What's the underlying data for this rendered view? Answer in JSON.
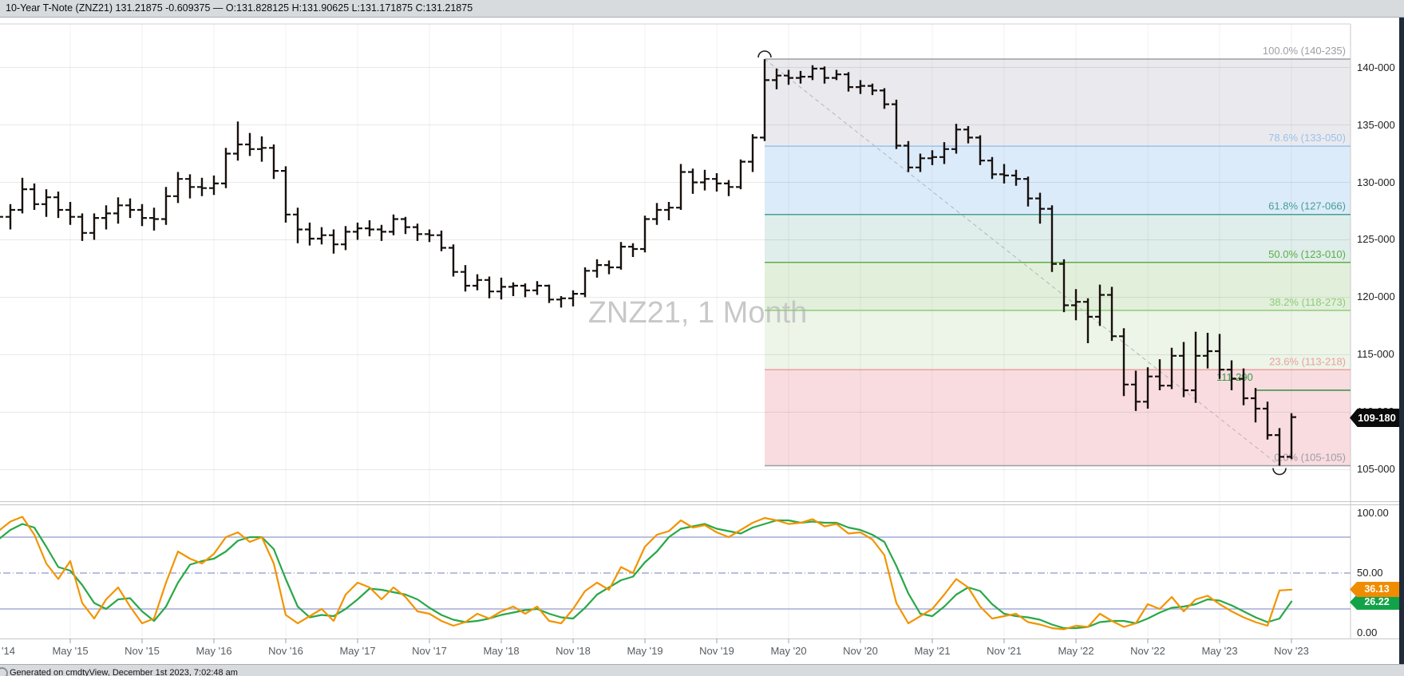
{
  "title_bar": {
    "text": "10-Year T-Note (ZNZ21) 131.21875 -0.609375 — O:131.828125 H:131.90625 L:131.171875 C:131.21875"
  },
  "watermark": "ZNZ21, 1 Month",
  "footer": {
    "text": "Generated on cmdtyView, December 1st 2023, 7:02:48 am"
  },
  "price_axis": {
    "labels": [
      "140-000",
      "135-000",
      "130-000",
      "125-000",
      "120-000",
      "115-000",
      "110-000",
      "105-000"
    ],
    "badge": {
      "text": "109-180",
      "value": 109.5625
    }
  },
  "x_axis": {
    "ticks": [
      {
        "text": "'14",
        "i": 0
      },
      {
        "text": "May '15",
        "i": 6
      },
      {
        "text": "Nov '15",
        "i": 12
      },
      {
        "text": "May '16",
        "i": 18
      },
      {
        "text": "Nov '16",
        "i": 24
      },
      {
        "text": "May '17",
        "i": 30
      },
      {
        "text": "Nov '17",
        "i": 36
      },
      {
        "text": "May '18",
        "i": 42
      },
      {
        "text": "Nov '18",
        "i": 48
      },
      {
        "text": "May '19",
        "i": 54
      },
      {
        "text": "Nov '19",
        "i": 60
      },
      {
        "text": "May '20",
        "i": 66
      },
      {
        "text": "Nov '20",
        "i": 72
      },
      {
        "text": "May '21",
        "i": 78
      },
      {
        "text": "Nov '21",
        "i": 84
      },
      {
        "text": "May '22",
        "i": 90
      },
      {
        "text": "Nov '22",
        "i": 96
      },
      {
        "text": "May '23",
        "i": 102
      },
      {
        "text": "Nov '23",
        "i": 108
      }
    ]
  },
  "fibonacci": {
    "anchors": {
      "high": {
        "bar": "Mar 2020",
        "i": 64,
        "price": 140.734
      },
      "low": {
        "bar": "Oct 2023",
        "i": 107,
        "price": 105.328
      }
    },
    "levels": [
      {
        "label": "100.0% (140-235)",
        "price": 140.734,
        "color": "#9d9da6"
      },
      {
        "label": "78.6% (133-050)",
        "price": 133.15625,
        "color": "#9cc1ec"
      },
      {
        "label": "61.8% (127-066)",
        "price": 127.20625,
        "color": "#45a094"
      },
      {
        "label": "50.0% (123-010)",
        "price": 123.03125,
        "color": "#5fae45"
      },
      {
        "label": "38.2% (118-273)",
        "price": 118.85313,
        "color": "#8fca79"
      },
      {
        "label": "23.6% (113-218)",
        "price": 113.68125,
        "color": "#eb9fa2"
      },
      {
        "label": "0.0% (105-105)",
        "price": 105.328,
        "color": "#9d9da6"
      }
    ],
    "bands": [
      {
        "from": 140.734,
        "to": 133.15625,
        "fill": "#eaeaee"
      },
      {
        "from": 133.15625,
        "to": 127.20625,
        "fill": "#dcebfa"
      },
      {
        "from": 127.20625,
        "to": 123.03125,
        "fill": "#dfedeb"
      },
      {
        "from": 123.03125,
        "to": 118.85313,
        "fill": "#e2f0db"
      },
      {
        "from": 118.85313,
        "to": 113.68125,
        "fill": "#ecf5e7"
      },
      {
        "from": 113.68125,
        "to": 105.328,
        "fill": "#f9dce0"
      }
    ]
  },
  "annotations": {
    "price_line": {
      "label": "111-290",
      "value": 111.90625,
      "line_color": "#1e8a35",
      "text_color": "#2f9e41"
    }
  },
  "oscillator": {
    "name": "stochastic",
    "scale": [
      {
        "text": "100.00",
        "value": 100
      },
      {
        "text": "50.00",
        "value": 50
      },
      {
        "text": "0.00",
        "value": 0
      }
    ],
    "ref_levels": [
      80,
      50,
      20
    ],
    "badges": [
      {
        "text": "36.13",
        "value": 36.13,
        "color": "#f08c00"
      },
      {
        "text": "26.22",
        "value": 26.22,
        "color": "#12a348"
      }
    ]
  },
  "colors": {
    "bar": "#17100d",
    "stoch_k": "#f29400",
    "stoch_d": "#29a847",
    "ref_line": "#a6abd6",
    "panel_bg": "#d8dbde",
    "badge_black": "#0b0b0b"
  },
  "chart_data": {
    "type": "bar",
    "subtype": "ohlc-monthly-with-stochastic",
    "symbol": "ZNZ21",
    "interval": "1 Month",
    "first_bar": "Nov 2014",
    "last_bar": "Nov 2023",
    "price_scale_format": "points-32nds",
    "ylim_price": [
      102.5,
      143.5
    ],
    "ylim_stochastic": [
      0,
      100
    ],
    "grid": true,
    "open": [
      126.3,
      127.0,
      127.6,
      129.4,
      128.1,
      128.7,
      127.6,
      127.0,
      125.6,
      126.9,
      127.3,
      128.0,
      127.6,
      126.9,
      126.8,
      128.8,
      130.3,
      129.6,
      129.5,
      129.9,
      132.5,
      133.3,
      132.9,
      133.0,
      131.0,
      127.2,
      125.9,
      125.1,
      125.4,
      124.6,
      125.7,
      126.0,
      125.9,
      125.7,
      126.8,
      126.1,
      125.5,
      125.4,
      124.3,
      122.2,
      121.0,
      121.5,
      120.5,
      120.9,
      121.0,
      120.6,
      121.0,
      119.8,
      119.9,
      120.3,
      122.3,
      122.8,
      122.6,
      124.4,
      124.2,
      126.8,
      127.6,
      127.8,
      130.9,
      130.0,
      130.3,
      129.9,
      129.6,
      131.8,
      133.9,
      138.9,
      139.3,
      139.1,
      139.2,
      139.9,
      139.1,
      139.4,
      138.3,
      138.4,
      138.0,
      136.8,
      133.2,
      131.3,
      132.1,
      132.2,
      132.9,
      134.6,
      133.9,
      131.9,
      130.7,
      130.6,
      130.3,
      128.6,
      127.7,
      122.9,
      119.3,
      119.6,
      118.3,
      120.2,
      116.6,
      112.4,
      110.9,
      113.1,
      112.3,
      114.9,
      111.9,
      114.9,
      115.3,
      113.7,
      112.9,
      111.2,
      110.3,
      108.0,
      106.1
    ],
    "high": [
      127.5,
      128.1,
      130.4,
      129.9,
      129.4,
      129.2,
      128.3,
      127.3,
      127.3,
      128.0,
      128.7,
      128.6,
      128.1,
      127.8,
      129.6,
      130.9,
      130.7,
      130.4,
      130.6,
      133.0,
      135.3,
      134.3,
      134.0,
      133.3,
      131.4,
      127.8,
      126.5,
      126.1,
      125.9,
      126.2,
      126.5,
      126.7,
      126.3,
      127.2,
      127.0,
      126.4,
      125.9,
      125.8,
      124.6,
      122.8,
      122.0,
      121.8,
      121.7,
      121.3,
      121.2,
      121.4,
      121.1,
      120.1,
      120.6,
      122.6,
      123.3,
      123.2,
      124.8,
      124.7,
      127.1,
      128.2,
      128.3,
      131.6,
      131.2,
      131.1,
      130.8,
      130.2,
      132.0,
      134.2,
      140.73,
      139.9,
      139.8,
      139.7,
      140.2,
      140.1,
      139.8,
      139.6,
      138.9,
      138.6,
      138.2,
      137.2,
      133.6,
      132.5,
      132.8,
      133.5,
      135.1,
      134.9,
      134.1,
      132.2,
      131.6,
      131.1,
      130.5,
      129.1,
      128.0,
      123.3,
      120.7,
      119.9,
      121.1,
      120.9,
      117.3,
      113.6,
      113.9,
      114.6,
      115.6,
      116.1,
      117.0,
      116.9,
      116.8,
      114.5,
      113.8,
      112.1,
      110.9,
      108.6,
      109.9
    ],
    "low": [
      125.8,
      125.9,
      127.3,
      127.6,
      127.0,
      126.9,
      126.3,
      124.9,
      125.0,
      125.9,
      126.4,
      126.9,
      126.2,
      125.8,
      126.3,
      128.2,
      128.6,
      128.8,
      128.9,
      129.5,
      131.9,
      132.3,
      131.8,
      130.3,
      126.5,
      124.7,
      124.5,
      124.6,
      123.8,
      124.1,
      125.0,
      125.3,
      124.9,
      125.4,
      125.5,
      124.9,
      124.8,
      124.0,
      121.8,
      120.5,
      120.6,
      119.9,
      119.8,
      120.1,
      120.0,
      120.2,
      119.5,
      119.1,
      119.2,
      120.0,
      121.7,
      122.0,
      122.4,
      123.5,
      123.9,
      126.3,
      126.7,
      127.6,
      129.0,
      129.3,
      129.2,
      128.8,
      129.4,
      130.9,
      133.6,
      138.1,
      138.5,
      138.6,
      138.9,
      138.6,
      138.9,
      137.9,
      137.7,
      137.6,
      136.4,
      132.9,
      130.9,
      130.9,
      131.5,
      131.6,
      132.5,
      133.4,
      131.5,
      130.3,
      129.9,
      129.7,
      127.9,
      126.4,
      122.2,
      118.7,
      118.0,
      116.0,
      117.5,
      116.2,
      111.4,
      110.1,
      110.3,
      111.9,
      112.0,
      111.3,
      110.8,
      113.8,
      112.9,
      111.9,
      110.6,
      109.1,
      107.6,
      105.33,
      105.9
    ],
    "close": [
      127.0,
      127.6,
      129.4,
      128.1,
      128.7,
      127.6,
      127.0,
      125.6,
      126.9,
      127.3,
      128.0,
      127.6,
      126.9,
      126.8,
      128.8,
      130.3,
      129.6,
      129.5,
      129.9,
      132.5,
      133.3,
      132.9,
      133.0,
      131.0,
      127.2,
      125.9,
      125.1,
      125.4,
      124.6,
      125.7,
      126.0,
      125.9,
      125.7,
      126.8,
      126.1,
      125.5,
      125.4,
      124.3,
      122.2,
      121.0,
      121.5,
      120.5,
      120.9,
      121.0,
      120.6,
      121.0,
      119.8,
      119.9,
      120.3,
      122.3,
      122.8,
      122.6,
      124.4,
      124.2,
      126.8,
      127.6,
      127.8,
      130.9,
      130.0,
      130.3,
      129.9,
      129.6,
      131.8,
      133.9,
      138.9,
      139.3,
      139.1,
      139.2,
      139.9,
      139.1,
      139.4,
      138.3,
      138.4,
      138.0,
      136.8,
      133.2,
      131.3,
      132.1,
      132.2,
      132.9,
      134.6,
      133.9,
      131.9,
      130.7,
      130.6,
      130.3,
      128.6,
      127.7,
      122.9,
      119.3,
      119.6,
      118.3,
      120.2,
      116.6,
      112.4,
      110.9,
      113.1,
      112.3,
      114.9,
      111.9,
      114.9,
      115.3,
      113.7,
      112.9,
      111.2,
      110.3,
      108.0,
      106.1,
      109.5625
    ],
    "stochastic": {
      "k_last": 36.13,
      "d_last": 26.22,
      "k": [
        85,
        93,
        97,
        82,
        58,
        45,
        60,
        25,
        12,
        28,
        38,
        22,
        8,
        12,
        42,
        68,
        62,
        58,
        66,
        80,
        84,
        76,
        80,
        58,
        15,
        8,
        14,
        20,
        10,
        32,
        42,
        38,
        28,
        38,
        30,
        18,
        16,
        10,
        6,
        9,
        16,
        12,
        18,
        22,
        16,
        22,
        10,
        8,
        20,
        35,
        42,
        36,
        55,
        50,
        72,
        82,
        85,
        94,
        88,
        90,
        84,
        80,
        86,
        92,
        96,
        94,
        91,
        92,
        95,
        89,
        91,
        83,
        84,
        78,
        65,
        25,
        8,
        14,
        20,
        32,
        45,
        38,
        22,
        12,
        14,
        16,
        9,
        7,
        4,
        3,
        6,
        5,
        16,
        10,
        5,
        8,
        24,
        20,
        30,
        18,
        28,
        31,
        24,
        18,
        13,
        9,
        6,
        35.5,
        36.13
      ],
      "d": [
        78,
        86,
        91,
        88,
        72,
        55,
        52,
        40,
        25,
        20,
        28,
        29,
        18,
        10,
        22,
        42,
        57,
        60,
        62,
        68,
        77,
        80,
        80,
        70,
        45,
        22,
        13,
        15,
        14,
        20,
        28,
        37,
        36,
        34,
        32,
        28,
        21,
        15,
        11,
        9,
        10,
        12,
        15,
        17,
        19,
        20,
        16,
        13,
        12,
        21,
        32,
        38,
        44,
        47,
        59,
        68,
        80,
        87,
        89,
        91,
        87,
        85,
        83,
        88,
        91,
        94,
        94,
        92,
        93,
        92,
        92,
        88,
        86,
        82,
        76,
        56,
        33,
        16,
        14,
        22,
        32,
        38,
        35,
        24,
        16,
        14,
        13,
        11,
        7,
        4,
        4,
        5,
        9,
        10,
        10,
        8,
        12,
        17,
        21,
        22,
        24,
        28,
        27,
        23,
        18,
        13,
        9,
        12,
        26.22
      ]
    }
  }
}
